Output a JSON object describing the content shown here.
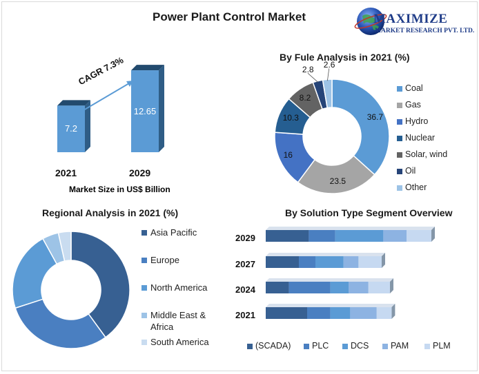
{
  "page": {
    "title": "Power Plant Control Market",
    "logo_word": "MAXIMIZE",
    "logo_sub": "MARKET RESEARCH PVT. LTD."
  },
  "colors": {
    "bar_front": "#5b9bd5",
    "bar_side": "#2f5d86",
    "bar_top": "#224a6e",
    "arrow": "#5b9bd5"
  },
  "chart_data": [
    {
      "type": "bar",
      "title": "",
      "xlabel": "Market Size in US$ Billion",
      "categories": [
        "2021",
        "2029"
      ],
      "values": [
        7.2,
        12.65
      ],
      "annotation": "CAGR 7.3%",
      "ylim": [
        0,
        14
      ]
    },
    {
      "type": "pie",
      "title": "By Fule Analysis in 2021 (%)",
      "donut": true,
      "labels": [
        "Coal",
        "Gas",
        "Hydro",
        "Nuclear",
        "Solar, wind",
        "Oil",
        "Other"
      ],
      "values": [
        36.7,
        23.5,
        16,
        10.3,
        8.2,
        2.8,
        2.6
      ],
      "colors": [
        "#5b9bd5",
        "#a5a5a5",
        "#4472c4",
        "#255e91",
        "#636363",
        "#264478",
        "#9dc3e6"
      ],
      "legend_position": "right"
    },
    {
      "type": "pie",
      "title": "Regional Analysis in 2021 (%)",
      "donut": true,
      "labels": [
        "Asia Pacific",
        "Europe",
        "North America",
        "Middle East & Africa",
        "South America"
      ],
      "values": [
        40,
        30,
        22,
        4.5,
        3.5
      ],
      "colors": [
        "#376092",
        "#4a7fc1",
        "#5b9bd5",
        "#9dc3e6",
        "#c9dcf0"
      ],
      "legend_position": "right"
    },
    {
      "type": "bar",
      "orientation": "horizontal",
      "stacked": true,
      "title": "By Solution Type Segment Overview",
      "categories": [
        "2029",
        "2027",
        "2024",
        "2021"
      ],
      "series": [
        {
          "name": "(SCADA)",
          "values": [
            26,
            20,
            14,
            25
          ]
        },
        {
          "name": "PLC",
          "values": [
            16,
            10,
            25,
            14
          ]
        },
        {
          "name": "DCS",
          "values": [
            29,
            17,
            11,
            12
          ]
        },
        {
          "name": "PAM",
          "values": [
            14,
            9,
            12,
            16
          ]
        },
        {
          "name": "PLM",
          "values": [
            15,
            14,
            13,
            9
          ]
        }
      ],
      "colors": [
        "#376092",
        "#4a7fc1",
        "#5b9bd5",
        "#8db3e2",
        "#c6d9f1"
      ],
      "legend_position": "bottom"
    }
  ]
}
